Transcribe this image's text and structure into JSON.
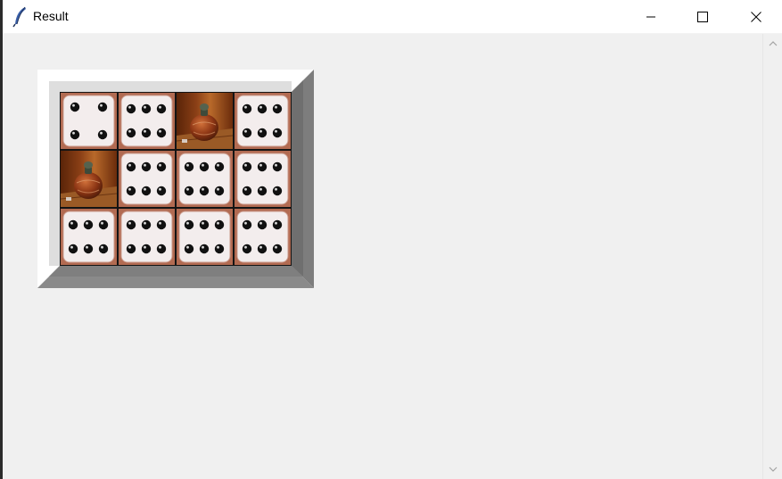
{
  "window": {
    "title": "Result",
    "icon": "feather-icon",
    "controls": [
      "minimize-icon",
      "maximize-icon",
      "close-icon"
    ]
  },
  "board": {
    "tiles": [
      {
        "kind": "die",
        "pips": 4
      },
      {
        "kind": "die",
        "pips": 6
      },
      {
        "kind": "vase"
      },
      {
        "kind": "die",
        "pips": 6
      },
      {
        "kind": "vase"
      },
      {
        "kind": "die",
        "pips": 6
      },
      {
        "kind": "die",
        "pips": 6
      },
      {
        "kind": "die",
        "pips": 6
      },
      {
        "kind": "die",
        "pips": 6
      },
      {
        "kind": "die",
        "pips": 6
      },
      {
        "kind": "die",
        "pips": 6
      },
      {
        "kind": "die",
        "pips": 6
      }
    ]
  },
  "colors": {
    "frame_light": "#ffffff",
    "frame_inner": "#dedede",
    "frame_shadow": "#848484",
    "frame_dark": "#6e6e6e",
    "die_face": "#f3eded",
    "die_border": "#b26b52",
    "pip": "#111111",
    "wood": "#8a3f16"
  }
}
